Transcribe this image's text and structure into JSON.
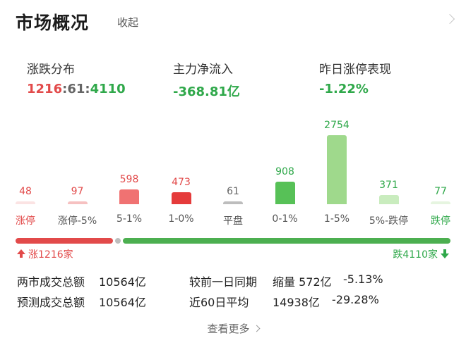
{
  "header": {
    "title": "市场概况",
    "collapse_label": "收起"
  },
  "stats": {
    "distribution": {
      "label": "涨跌分布",
      "up": "1216",
      "sep1": ":",
      "flat": "61",
      "sep2": ":",
      "down": "4110"
    },
    "main_inflow": {
      "label": "主力净流入",
      "value": "-368.81亿"
    },
    "limit_up_perf": {
      "label": "昨日涨停表现",
      "value": "-1.22%"
    }
  },
  "chart_data": {
    "type": "bar",
    "categories": [
      "涨停",
      "涨停-5%",
      "5-1%",
      "1-0%",
      "平盘",
      "0-1%",
      "1-5%",
      "5%-跌停",
      "跌停"
    ],
    "values": [
      48,
      97,
      598,
      473,
      61,
      908,
      2754,
      371,
      77
    ],
    "colors": [
      "#fbe3e3",
      "#f6c1c1",
      "#f07272",
      "#e53b3b",
      "#bdbdbd",
      "#57c157",
      "#9fd98c",
      "#c9ecbe",
      "#e6f5e0"
    ],
    "value_colors": [
      "#e24a4a",
      "#e24a4a",
      "#e24a4a",
      "#e24a4a",
      "#666666",
      "#2fa84a",
      "#2fa84a",
      "#2fa84a",
      "#2fa84a"
    ],
    "label_colors": [
      "#e24a4a",
      "#555555",
      "#555555",
      "#555555",
      "#555555",
      "#555555",
      "#555555",
      "#555555",
      "#2fa84a"
    ]
  },
  "breadth": {
    "up_label": "涨1216家",
    "down_label": "跌4110家",
    "up_count": 1216,
    "flat_count": 61,
    "down_count": 4110,
    "up_color": "#e24a4a",
    "flat_color": "#bdbdbd",
    "down_color": "#4caf50"
  },
  "turnover": {
    "total_label": "两市成交总额",
    "total_value": "10564亿",
    "forecast_label": "预测成交总额",
    "forecast_value": "10564亿",
    "prev_label": "较前一日同期",
    "prev_change": "缩量 572亿",
    "prev_pct": "-5.13%",
    "avg_label": "近60日平均",
    "avg_value": "14938亿",
    "avg_pct": "-29.28%"
  },
  "footer": {
    "more_label": "查看更多"
  }
}
